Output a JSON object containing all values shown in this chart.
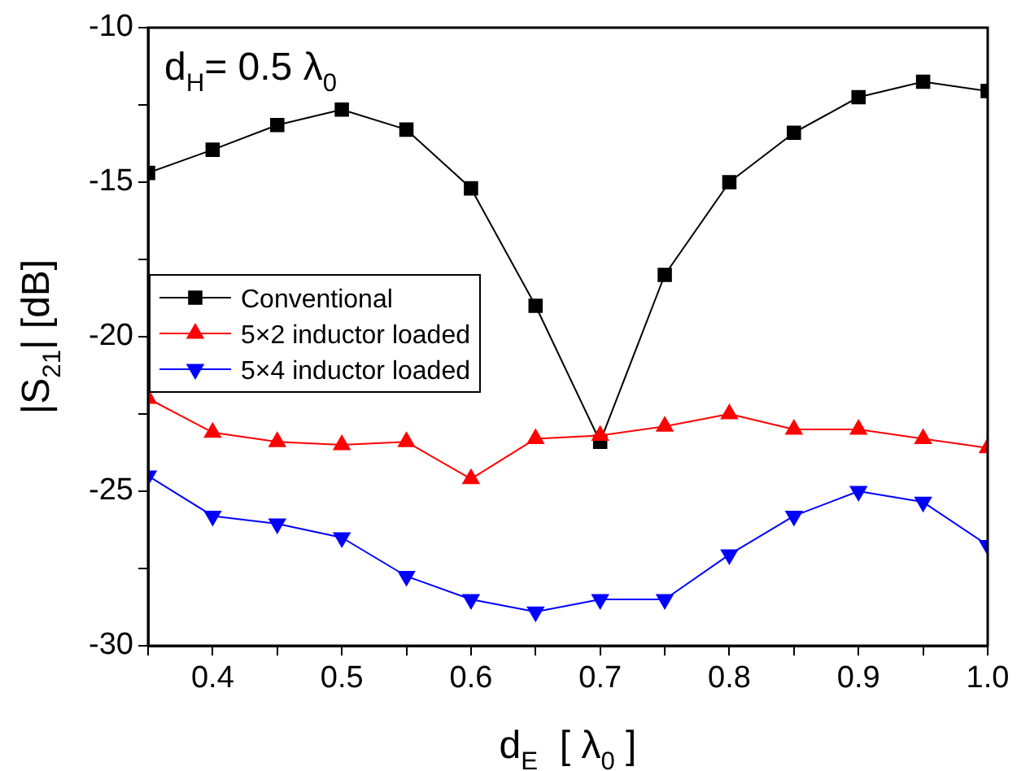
{
  "chart_data": {
    "type": "line",
    "xlabel": "d$_{E}$  [ λ$_{0}$ ]",
    "ylabel": "|S$_{21}$| [dB]",
    "annotations": [
      "d$_{H}$= 0.5 λ$_{0}$"
    ],
    "x": [
      0.35,
      0.4,
      0.45,
      0.5,
      0.55,
      0.6,
      0.65,
      0.7,
      0.75,
      0.8,
      0.85,
      0.9,
      0.95,
      1.0
    ],
    "series": [
      {
        "name": "Conventional",
        "color": "#000000",
        "marker": "square",
        "values": [
          -14.7,
          -13.95,
          -13.15,
          -12.65,
          -13.3,
          -15.2,
          -19.0,
          -23.4,
          -18.0,
          -15.0,
          -13.4,
          -12.25,
          -11.75,
          -12.05
        ]
      },
      {
        "name": "5×2 inductor loaded",
        "color": "#ff0000",
        "marker": "triangle",
        "values": [
          -22.0,
          -23.1,
          -23.4,
          -23.5,
          -23.4,
          -24.6,
          -23.3,
          -23.2,
          -22.9,
          -22.5,
          -23.0,
          -23.0,
          -23.3,
          -23.6
        ]
      },
      {
        "name": "5×4 inductor loaded",
        "color": "#0000ff",
        "marker": "triangle_down",
        "values": [
          -24.5,
          -25.8,
          -26.05,
          -26.5,
          -27.75,
          -28.5,
          -28.9,
          -28.5,
          -28.5,
          -27.05,
          -25.8,
          -25.0,
          -25.35,
          -26.75
        ]
      }
    ],
    "xlim": [
      0.35,
      1.0
    ],
    "xticks": [
      {
        "value": 0.35,
        "label": null
      },
      0.4,
      {
        "value": 0.45,
        "label": null
      },
      0.5,
      {
        "value": 0.55,
        "label": null
      },
      0.6,
      {
        "value": 0.65,
        "label": null
      },
      0.7,
      {
        "value": 0.75,
        "label": null
      },
      0.8,
      {
        "value": 0.85,
        "label": null
      },
      0.9,
      {
        "value": 0.95,
        "label": null
      },
      {
        "value": 1.0,
        "label": "1.0"
      }
    ],
    "ylim": [
      -30,
      -10
    ],
    "yticks": [
      -30,
      {
        "value": -27.5,
        "label": null
      },
      -25,
      {
        "value": -22.5,
        "label": null
      },
      -20,
      {
        "value": -17.5,
        "label": null
      },
      -15,
      {
        "value": -12.5,
        "label": null
      },
      -10
    ],
    "grid": false,
    "legend": "left",
    "line_style": "solid"
  }
}
